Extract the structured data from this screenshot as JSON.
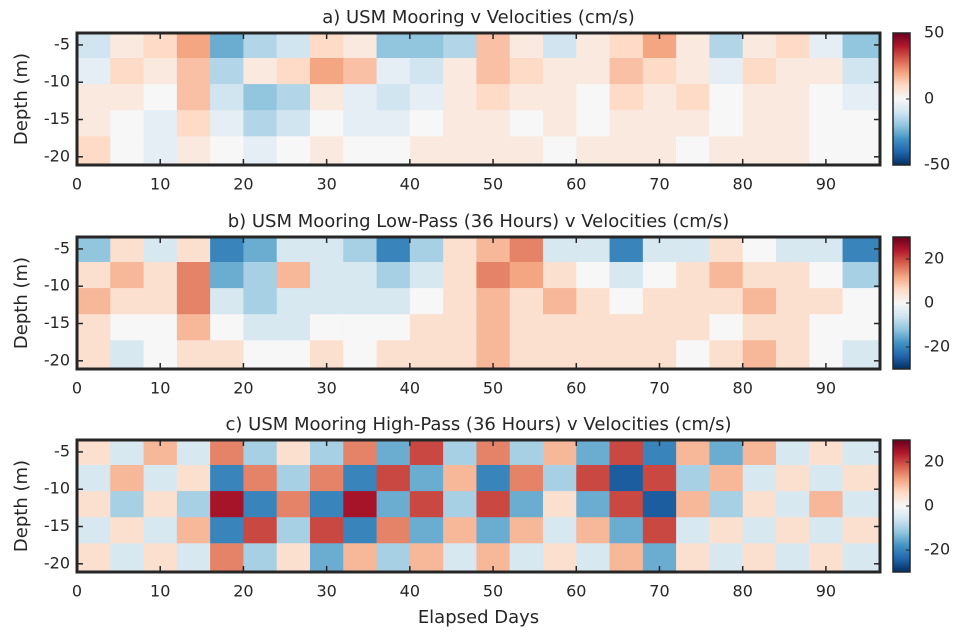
{
  "chart_data": [
    {
      "type": "heatmap",
      "title": "a) USM Mooring v Velocities (cm/s)",
      "ylabel": "Depth (m)",
      "x": [
        2,
        6,
        10,
        14,
        18,
        22,
        26,
        30,
        34,
        38,
        42,
        46,
        50,
        54,
        58,
        62,
        66,
        70,
        74,
        78,
        82,
        86,
        90,
        94
      ],
      "y": [
        -5,
        -8.5,
        -12,
        -15.5,
        -19
      ],
      "z": [
        [
          -10,
          5,
          10,
          20,
          -25,
          -15,
          -10,
          10,
          5,
          -20,
          -20,
          -15,
          15,
          5,
          -10,
          5,
          10,
          20,
          5,
          -15,
          5,
          10,
          -5,
          -20
        ],
        [
          -5,
          10,
          5,
          15,
          -15,
          5,
          10,
          20,
          15,
          -5,
          -10,
          5,
          15,
          10,
          5,
          5,
          15,
          10,
          5,
          -5,
          10,
          5,
          5,
          -10
        ],
        [
          5,
          5,
          0,
          15,
          -10,
          -20,
          -15,
          5,
          -5,
          -10,
          -5,
          5,
          10,
          5,
          5,
          0,
          10,
          5,
          10,
          0,
          5,
          5,
          0,
          -5
        ],
        [
          5,
          0,
          -5,
          10,
          -5,
          -15,
          -10,
          0,
          -5,
          -5,
          0,
          5,
          5,
          0,
          5,
          0,
          5,
          5,
          5,
          0,
          5,
          5,
          0,
          0
        ],
        [
          10,
          0,
          -5,
          5,
          0,
          -5,
          0,
          5,
          0,
          0,
          5,
          5,
          5,
          5,
          0,
          5,
          5,
          5,
          0,
          5,
          5,
          5,
          0,
          0
        ]
      ],
      "xlim": [
        0,
        96.5
      ],
      "xticks": [
        0,
        10,
        20,
        30,
        40,
        50,
        60,
        70,
        80,
        90
      ],
      "ylim": [
        -21.1,
        -3.4
      ],
      "yticks": [
        -5,
        -10,
        -15,
        -20
      ],
      "clim": [
        -50,
        50
      ],
      "cticks": [
        -50,
        0,
        50
      ],
      "colormap": [
        "#053061",
        "#2166ac",
        "#4393c3",
        "#92c5de",
        "#d1e5f0",
        "#f7f7f7",
        "#fddbc7",
        "#f4a582",
        "#d6604d",
        "#b2182b",
        "#67001f"
      ]
    },
    {
      "type": "heatmap",
      "title": "b) USM Mooring Low-Pass (36 Hours) v Velocities (cm/s)",
      "ylabel": "Depth (m)",
      "x": [
        2,
        6,
        10,
        14,
        18,
        22,
        26,
        30,
        34,
        38,
        42,
        46,
        50,
        54,
        58,
        62,
        66,
        70,
        74,
        78,
        82,
        86,
        90,
        94
      ],
      "y": [
        -5,
        -8.5,
        -12,
        -15.5,
        -19
      ],
      "z": [
        [
          -12,
          5,
          -5,
          5,
          -20,
          -15,
          -5,
          -5,
          -10,
          -20,
          -10,
          5,
          10,
          15,
          -5,
          -5,
          -20,
          -5,
          -5,
          5,
          0,
          -5,
          -5,
          -20
        ],
        [
          5,
          10,
          5,
          15,
          -15,
          -10,
          10,
          -5,
          -5,
          -10,
          -5,
          5,
          15,
          12,
          5,
          0,
          -5,
          0,
          5,
          10,
          5,
          5,
          0,
          -10
        ],
        [
          10,
          5,
          5,
          15,
          -5,
          -10,
          -5,
          -5,
          -5,
          -5,
          0,
          5,
          10,
          5,
          10,
          5,
          0,
          5,
          5,
          5,
          10,
          5,
          5,
          0
        ],
        [
          5,
          0,
          0,
          10,
          0,
          -5,
          -5,
          0,
          0,
          0,
          5,
          5,
          10,
          5,
          5,
          5,
          5,
          5,
          5,
          0,
          5,
          5,
          0,
          0
        ],
        [
          5,
          -5,
          0,
          5,
          5,
          0,
          0,
          5,
          0,
          5,
          5,
          5,
          10,
          5,
          5,
          5,
          5,
          5,
          0,
          5,
          10,
          5,
          0,
          -5
        ]
      ],
      "xlim": [
        0,
        96.5
      ],
      "xticks": [
        0,
        10,
        20,
        30,
        40,
        50,
        60,
        70,
        80,
        90
      ],
      "ylim": [
        -21.1,
        -3.4
      ],
      "yticks": [
        -5,
        -10,
        -15,
        -20
      ],
      "clim": [
        -30,
        30
      ],
      "cticks": [
        -20,
        0,
        20
      ],
      "colormap": [
        "#053061",
        "#2166ac",
        "#4393c3",
        "#92c5de",
        "#d1e5f0",
        "#f7f7f7",
        "#fddbc7",
        "#f4a582",
        "#d6604d",
        "#b2182b",
        "#67001f"
      ]
    },
    {
      "type": "heatmap",
      "title": "c) USM Mooring High-Pass (36 Hours) v Velocities (cm/s)",
      "ylabel": "Depth (m)",
      "xlabel": "Elapsed Days",
      "x": [
        2,
        6,
        10,
        14,
        18,
        22,
        26,
        30,
        34,
        38,
        42,
        46,
        50,
        54,
        58,
        62,
        66,
        70,
        74,
        78,
        82,
        86,
        90,
        94
      ],
      "y": [
        -5,
        -8.5,
        -12,
        -15.5,
        -19
      ],
      "z": [
        [
          5,
          -5,
          10,
          -5,
          15,
          -10,
          5,
          -10,
          15,
          -15,
          20,
          -10,
          15,
          -10,
          10,
          -15,
          20,
          -20,
          10,
          -15,
          10,
          -5,
          5,
          -5
        ],
        [
          -5,
          10,
          -5,
          5,
          -20,
          15,
          -10,
          15,
          -20,
          20,
          -15,
          10,
          -20,
          15,
          -10,
          20,
          -25,
          20,
          -10,
          10,
          -5,
          5,
          -5,
          5
        ],
        [
          5,
          -10,
          5,
          -10,
          25,
          -20,
          15,
          -20,
          25,
          -15,
          20,
          -10,
          20,
          -15,
          5,
          -15,
          20,
          -25,
          10,
          -10,
          5,
          -5,
          10,
          -5
        ],
        [
          -5,
          5,
          -5,
          10,
          -20,
          20,
          -10,
          20,
          -20,
          15,
          -15,
          10,
          -15,
          10,
          -5,
          10,
          -15,
          20,
          -5,
          5,
          -5,
          5,
          -5,
          5
        ],
        [
          5,
          -5,
          5,
          -5,
          15,
          -10,
          5,
          -15,
          10,
          -10,
          10,
          -5,
          10,
          -5,
          5,
          -5,
          10,
          -15,
          5,
          -5,
          5,
          -5,
          5,
          -5
        ]
      ],
      "xlim": [
        0,
        96.5
      ],
      "xticks": [
        0,
        10,
        20,
        30,
        40,
        50,
        60,
        70,
        80,
        90
      ],
      "ylim": [
        -21.1,
        -3.4
      ],
      "yticks": [
        -5,
        -10,
        -15,
        -20
      ],
      "clim": [
        -30,
        30
      ],
      "cticks": [
        -20,
        0,
        20
      ],
      "colormap": [
        "#053061",
        "#2166ac",
        "#4393c3",
        "#92c5de",
        "#d1e5f0",
        "#f7f7f7",
        "#fddbc7",
        "#f4a582",
        "#d6604d",
        "#b2182b",
        "#67001f"
      ]
    }
  ]
}
